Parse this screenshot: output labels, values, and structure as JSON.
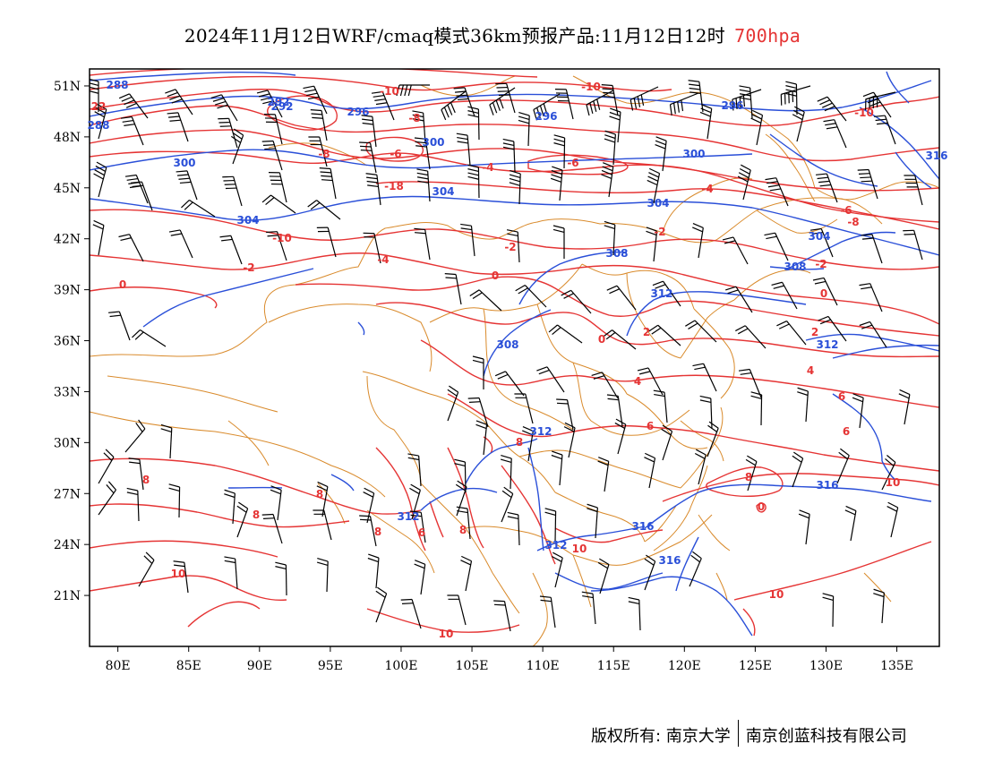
{
  "title": {
    "main": "2024年11月12日WRF/cmaq模式36km预报产品:11月12日12时",
    "level": "700hpa"
  },
  "axes": {
    "lat_labels": [
      "51N",
      "48N",
      "45N",
      "42N",
      "39N",
      "36N",
      "33N",
      "30N",
      "27N",
      "24N",
      "21N"
    ],
    "lon_labels": [
      "80E",
      "85E",
      "90E",
      "95E",
      "100E",
      "105E",
      "110E",
      "115E",
      "120E",
      "125E",
      "130E",
      "135E"
    ],
    "lon_range": [
      78,
      138
    ],
    "lat_range": [
      18,
      52
    ]
  },
  "map_data": {
    "layers": [
      "temperature contours (red)",
      "geopotential height contours (blue)",
      "wind barbs",
      "province boundaries"
    ],
    "colors": {
      "temperature": "#e53434",
      "height": "#2a4fd8",
      "boundary": "#d98a2b",
      "barb": "#000000"
    },
    "temperature_labels": [
      "22",
      "-10",
      "-10",
      "-8",
      "-8",
      "-6",
      "-4",
      "-6",
      "-10",
      "-18",
      "-4",
      "-6",
      "-10",
      "-2",
      "-4",
      "-2",
      "-2",
      "-2",
      "-8",
      "0",
      "0",
      "0",
      "2",
      "2",
      "0",
      "4",
      "4",
      "6",
      "6",
      "6",
      "8",
      "8",
      "8",
      "8",
      "8",
      "8",
      "6",
      "8",
      "10",
      "10",
      "10",
      "10",
      "10",
      "0"
    ],
    "height_labels": [
      "288",
      "292",
      "296",
      "296",
      "296",
      "300",
      "300",
      "300",
      "304",
      "304",
      "304",
      "304",
      "308",
      "308",
      "308",
      "312",
      "312",
      "312",
      "312",
      "312",
      "316",
      "316",
      "316",
      "316",
      "292",
      "288"
    ]
  },
  "copyright": {
    "left": "版权所有: 南京大学",
    "right": "南京创蓝科技有限公司"
  }
}
